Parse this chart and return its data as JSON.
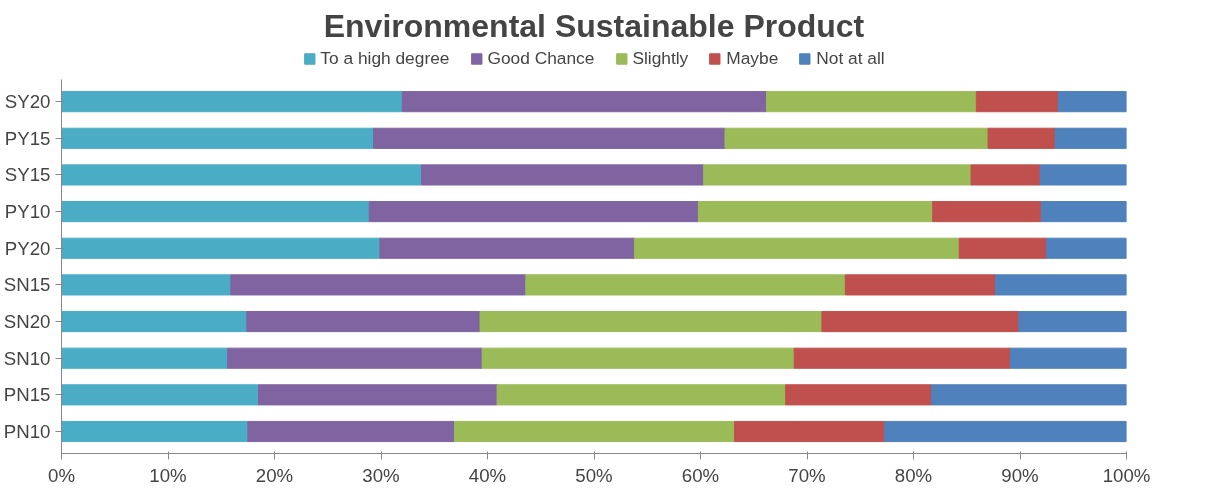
{
  "chart_data": {
    "type": "bar",
    "orientation": "horizontal",
    "stacked": true,
    "title": "Environmental Sustainable Product",
    "categories": [
      "SY20",
      "PY15",
      "SY15",
      "PY10",
      "PY20",
      "SN15",
      "SN20",
      "SN10",
      "PN15",
      "PN10"
    ],
    "series": [
      {
        "name": "To a high degree",
        "color": "#4bacc6",
        "values": [
          32.0,
          29.3,
          33.8,
          28.9,
          29.9,
          15.9,
          17.4,
          15.6,
          18.5,
          17.5
        ]
      },
      {
        "name": "Good Chance",
        "color": "#8064a2",
        "values": [
          34.2,
          33.0,
          26.5,
          30.9,
          23.9,
          27.7,
          21.9,
          23.9,
          22.4,
          19.4
        ]
      },
      {
        "name": "Slightly",
        "color": "#9bbb59",
        "values": [
          19.7,
          24.7,
          25.1,
          22.0,
          30.5,
          30.0,
          32.1,
          29.3,
          27.1,
          26.3
        ]
      },
      {
        "name": "Maybe",
        "color": "#c0504d",
        "values": [
          7.7,
          6.3,
          6.5,
          10.2,
          8.2,
          14.1,
          18.5,
          20.3,
          13.7,
          14.1
        ]
      },
      {
        "name": "Not at all",
        "color": "#4f81bd",
        "values": [
          6.4,
          6.7,
          8.1,
          8.0,
          7.5,
          12.3,
          10.1,
          10.9,
          18.3,
          22.7
        ]
      }
    ],
    "xlim": [
      0,
      100
    ],
    "xticks": [
      {
        "value": 0,
        "label": "0%"
      },
      {
        "value": 10,
        "label": "10%"
      },
      {
        "value": 20,
        "label": "20%"
      },
      {
        "value": 30,
        "label": "30%"
      },
      {
        "value": 40,
        "label": "40%"
      },
      {
        "value": 50,
        "label": "50%"
      },
      {
        "value": 60,
        "label": "60%"
      },
      {
        "value": 70,
        "label": "70%"
      },
      {
        "value": 80,
        "label": "80%"
      },
      {
        "value": 90,
        "label": "90%"
      },
      {
        "value": 100,
        "label": "100%"
      }
    ],
    "legend": "top",
    "grid": false
  }
}
